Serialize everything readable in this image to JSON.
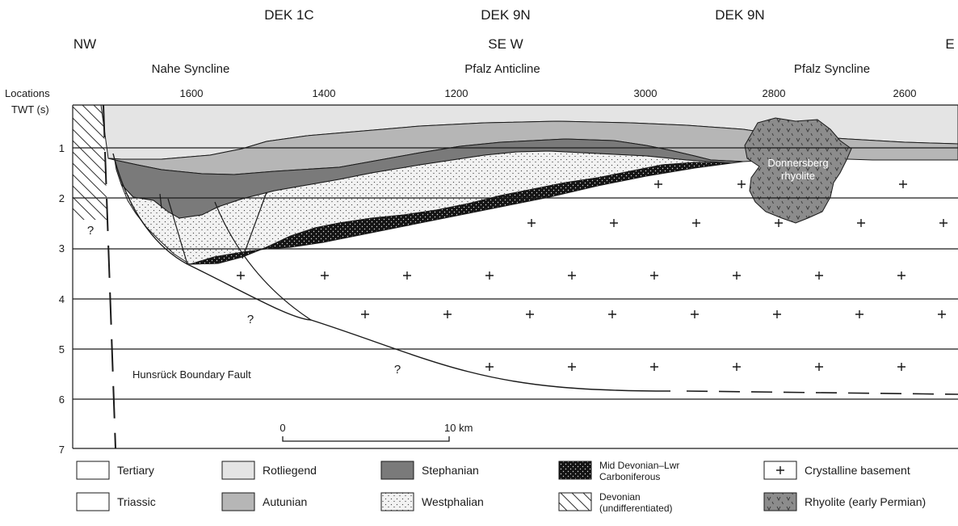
{
  "profiles": [
    "DEK 1C",
    "DEK 9N",
    "DEK 9N"
  ],
  "directions": {
    "left": "NW",
    "middle": "SE W",
    "right": "E"
  },
  "structures": [
    "Nahe Syncline",
    "Pfalz Anticline",
    "Pfalz Syncline"
  ],
  "axis": {
    "locations_label": "Locations",
    "twt_label": "TWT  (s)",
    "locations": [
      "1600",
      "1400",
      "1200",
      "3000",
      "2800",
      "2600"
    ],
    "twt_ticks": [
      "1",
      "2",
      "3",
      "4",
      "5",
      "6",
      "7"
    ]
  },
  "annotations": {
    "rhyolite_label": [
      "Donnersberg",
      "rhyolite"
    ],
    "fault_label": "Hunsrück Boundary Fault",
    "unknown_marker": "?"
  },
  "scale_bar": {
    "start": "0",
    "end": "10 km"
  },
  "legend": [
    {
      "label": [
        "Tertiary"
      ],
      "fill": "#ffffff",
      "pattern": "none"
    },
    {
      "label": [
        "Rotliegend"
      ],
      "fill": "#e4e4e4",
      "pattern": "none"
    },
    {
      "label": [
        "Stephanian"
      ],
      "fill": "#7a7a7a",
      "pattern": "none"
    },
    {
      "label": [
        "Mid Devonian–Lwr",
        "Carboniferous"
      ],
      "fill": "#141414",
      "pattern": "dots-white"
    },
    {
      "label": [
        "Crystalline basement"
      ],
      "fill": "#ffffff",
      "pattern": "plus"
    },
    {
      "label": [
        "Triassic"
      ],
      "fill": "#ffffff",
      "pattern": "none"
    },
    {
      "label": [
        "Autunian"
      ],
      "fill": "#b6b6b6",
      "pattern": "none"
    },
    {
      "label": [
        "Westphalian"
      ],
      "fill": "#f2f2f2",
      "pattern": "dots-black"
    },
    {
      "label": [
        "Devonian",
        "(undifferentiated)"
      ],
      "fill": "#ffffff",
      "pattern": "hatch"
    },
    {
      "label": [
        "Rhyolite (early Permian)"
      ],
      "fill": "#8c8c8c",
      "pattern": "v"
    }
  ],
  "colors": {
    "rotliegend": "#e4e4e4",
    "autunian": "#b6b6b6",
    "stephanian": "#7a7a7a",
    "westphalian": "#f2f2f2",
    "devonian_carboniferous": "#141414",
    "rhyolite": "#8c8c8c",
    "line": "#1a1a1a"
  }
}
